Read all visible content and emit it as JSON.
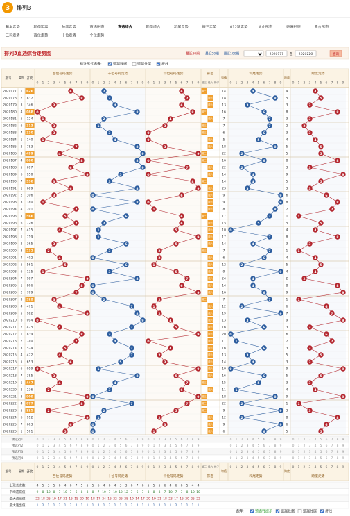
{
  "header": {
    "logo": "3",
    "title": "排列3"
  },
  "nav": [
    [
      "基本走势",
      "和值距离",
      "跨度走势",
      "直选形态",
      "直选综合",
      "和值综合",
      "和尾走势",
      "振三走势",
      "012路走势",
      "大小形态",
      "奇偶形态",
      "质合形态"
    ],
    [
      "二码走势",
      "百位走势",
      "十位走势",
      "个位走势"
    ]
  ],
  "nav_active": "0.4",
  "chart": {
    "title": "排列3直选综合走势图",
    "ranges": [
      "最近30期",
      "最近50期",
      "最近100期"
    ],
    "from": "2020177",
    "to_label": "至",
    "to": "2020226",
    "query": "查询"
  },
  "options": {
    "label": "标注形式选择:",
    "items": [
      {
        "text": "遗漏数据",
        "checked": true
      },
      {
        "text": "遗漏分层",
        "checked": false
      },
      {
        "text": "折线",
        "checked": true
      }
    ]
  },
  "columns": {
    "period": "期号",
    "week": "星期",
    "number": "开奖",
    "sections": [
      "百位号码走势",
      "十位号码走势",
      "个位号码走势",
      "形态",
      "和值",
      "和尾走势",
      "跨度",
      "跨度走势"
    ],
    "digits": [
      0,
      1,
      2,
      3,
      4,
      5,
      6,
      7,
      8,
      9
    ],
    "forms": [
      "组三",
      "组六",
      "豹子"
    ]
  },
  "rows": [
    {
      "p": "2020177",
      "w": "1",
      "n": "626",
      "d": [
        6,
        2,
        6
      ],
      "s": 14,
      "t": 4,
      "k": 4,
      "f": "组三"
    },
    {
      "p": "2020178",
      "w": "2",
      "n": "837",
      "d": [
        8,
        3,
        7
      ],
      "s": 18,
      "t": 8,
      "k": 5,
      "f": "组六"
    },
    {
      "p": "2020179",
      "w": "3",
      "n": "346",
      "d": [
        3,
        4,
        6
      ],
      "s": 13,
      "t": 3,
      "k": 3,
      "f": "组六"
    },
    {
      "p": "2020180",
      "w": "4",
      "n": "088",
      "d": [
        0,
        8,
        8
      ],
      "s": 16,
      "t": 6,
      "k": 8,
      "f": "组三"
    },
    {
      "p": "2020181",
      "w": "5",
      "n": "124",
      "d": [
        1,
        2,
        4
      ],
      "s": 7,
      "t": 7,
      "k": 3,
      "f": "组六"
    },
    {
      "p": "2020182",
      "w": "6",
      "n": "313",
      "d": [
        3,
        1,
        3
      ],
      "s": 7,
      "t": 7,
      "k": 2,
      "f": "组三"
    },
    {
      "p": "2020183",
      "w": "7",
      "n": "330",
      "d": [
        3,
        3,
        0
      ],
      "s": 6,
      "t": 6,
      "k": 3,
      "f": "组三"
    },
    {
      "p": "2020184",
      "w": "1",
      "n": "140",
      "d": [
        1,
        4,
        0
      ],
      "s": 5,
      "t": 5,
      "k": 4,
      "f": "组六"
    },
    {
      "p": "2020185",
      "w": "2",
      "n": "783",
      "d": [
        7,
        8,
        3
      ],
      "s": 18,
      "t": 8,
      "k": 5,
      "f": "组六"
    },
    {
      "p": "2020186",
      "w": "3",
      "n": "499",
      "d": [
        4,
        9,
        9
      ],
      "s": 22,
      "t": 2,
      "k": 5,
      "f": "组三"
    },
    {
      "p": "2020187",
      "w": "4",
      "n": "880",
      "d": [
        8,
        8,
        0
      ],
      "s": 16,
      "t": 6,
      "k": 8,
      "f": "组三"
    },
    {
      "p": "2020188",
      "w": "5",
      "n": "697",
      "d": [
        6,
        9,
        7
      ],
      "s": 22,
      "t": 2,
      "k": 3,
      "f": "组六"
    },
    {
      "p": "2020189",
      "w": "6",
      "n": "950",
      "d": [
        9,
        5,
        0
      ],
      "s": 14,
      "t": 4,
      "k": 9,
      "f": "组六"
    },
    {
      "p": "2020190",
      "w": "7",
      "n": "338",
      "d": [
        3,
        3,
        8
      ],
      "s": 14,
      "t": 4,
      "k": 5,
      "f": "组三"
    },
    {
      "p": "2020191",
      "w": "1",
      "n": "689",
      "d": [
        6,
        8,
        9
      ],
      "s": 23,
      "t": 3,
      "k": 3,
      "f": "组六"
    },
    {
      "p": "2020192",
      "w": "2",
      "n": "306",
      "d": [
        3,
        0,
        6
      ],
      "s": 9,
      "t": 9,
      "k": 6,
      "f": "组六"
    },
    {
      "p": "2020193",
      "w": "3",
      "n": "180",
      "d": [
        1,
        8,
        0
      ],
      "s": 9,
      "t": 9,
      "k": 8,
      "f": "组六"
    },
    {
      "p": "2020194",
      "w": "4",
      "n": "701",
      "d": [
        7,
        0,
        1
      ],
      "s": 8,
      "t": 8,
      "k": 7,
      "f": "组六"
    },
    {
      "p": "2020195",
      "w": "5",
      "n": "566",
      "d": [
        5,
        6,
        6
      ],
      "s": 17,
      "t": 7,
      "k": 1,
      "f": "组三"
    },
    {
      "p": "2020196",
      "w": "6",
      "n": "726",
      "d": [
        7,
        2,
        6
      ],
      "s": 15,
      "t": 5,
      "k": 5,
      "f": "组六"
    },
    {
      "p": "2020197",
      "w": "7",
      "n": "415",
      "d": [
        4,
        1,
        5
      ],
      "s": 10,
      "t": 0,
      "k": 4,
      "f": "组六"
    },
    {
      "p": "2020198",
      "w": "1",
      "n": "719",
      "d": [
        7,
        1,
        9
      ],
      "s": 17,
      "t": 7,
      "k": 8,
      "f": "组六"
    },
    {
      "p": "2020199",
      "w": "2",
      "n": "365",
      "d": [
        3,
        6,
        5
      ],
      "s": 14,
      "t": 4,
      "k": 3,
      "f": "组六"
    },
    {
      "p": "2020200",
      "w": "3",
      "n": "232",
      "d": [
        2,
        3,
        2
      ],
      "s": 7,
      "t": 7,
      "k": 1,
      "f": "组三"
    },
    {
      "p": "2020201",
      "w": "4",
      "n": "402",
      "d": [
        4,
        0,
        2
      ],
      "s": 6,
      "t": 6,
      "k": 4,
      "f": "组六"
    },
    {
      "p": "2020202",
      "w": "5",
      "n": "561",
      "d": [
        5,
        6,
        1
      ],
      "s": 12,
      "t": 2,
      "k": 5,
      "f": "组六"
    },
    {
      "p": "2020203",
      "w": "6",
      "n": "135",
      "d": [
        1,
        3,
        5
      ],
      "s": 9,
      "t": 9,
      "k": 4,
      "f": "组六"
    },
    {
      "p": "2020204",
      "w": "7",
      "n": "987",
      "d": [
        9,
        8,
        7
      ],
      "s": 24,
      "t": 4,
      "k": 2,
      "f": "组六"
    },
    {
      "p": "2020205",
      "w": "1",
      "n": "806",
      "d": [
        8,
        0,
        6
      ],
      "s": 14,
      "t": 4,
      "k": 8,
      "f": "组六"
    },
    {
      "p": "2020206",
      "w": "2",
      "n": "709",
      "d": [
        7,
        0,
        9
      ],
      "s": 16,
      "t": 6,
      "k": 9,
      "f": "组六"
    },
    {
      "p": "2020207",
      "w": "3",
      "n": "322",
      "d": [
        3,
        2,
        2
      ],
      "s": 7,
      "t": 7,
      "k": 1,
      "f": "组三"
    },
    {
      "p": "2020208",
      "w": "4",
      "n": "471",
      "d": [
        4,
        7,
        1
      ],
      "s": 12,
      "t": 2,
      "k": 6,
      "f": "组六"
    },
    {
      "p": "2020209",
      "w": "5",
      "n": "982",
      "d": [
        9,
        8,
        2
      ],
      "s": 19,
      "t": 9,
      "k": 7,
      "f": "组六"
    },
    {
      "p": "2020210",
      "w": "6",
      "n": "094",
      "d": [
        0,
        9,
        4
      ],
      "s": 13,
      "t": 3,
      "k": 9,
      "f": "组六"
    },
    {
      "p": "2020211",
      "w": "7",
      "n": "475",
      "d": [
        4,
        7,
        5
      ],
      "s": 16,
      "t": 6,
      "k": 3,
      "f": "组六"
    },
    {
      "p": "2020212",
      "w": "1",
      "n": "839",
      "d": [
        8,
        3,
        9
      ],
      "s": 20,
      "t": 0,
      "k": 6,
      "f": "组六"
    },
    {
      "p": "2020213",
      "w": "2",
      "n": "740",
      "d": [
        7,
        4,
        0
      ],
      "s": 11,
      "t": 1,
      "k": 7,
      "f": "组六"
    },
    {
      "p": "2020214",
      "w": "3",
      "n": "574",
      "d": [
        5,
        7,
        4
      ],
      "s": 16,
      "t": 6,
      "k": 3,
      "f": "组六"
    },
    {
      "p": "2020215",
      "w": "4",
      "n": "472",
      "d": [
        4,
        7,
        2
      ],
      "s": 13,
      "t": 3,
      "k": 5,
      "f": "组六"
    },
    {
      "p": "2020216",
      "w": "5",
      "n": "653",
      "d": [
        6,
        5,
        3
      ],
      "s": 14,
      "t": 4,
      "k": 3,
      "f": "组六"
    },
    {
      "p": "2020217",
      "w": "6",
      "n": "019",
      "d": [
        0,
        1,
        9
      ],
      "s": 10,
      "t": 0,
      "k": 9,
      "f": "组六"
    },
    {
      "p": "2020218",
      "w": "7",
      "n": "385",
      "d": [
        3,
        8,
        5
      ],
      "s": 16,
      "t": 6,
      "k": 5,
      "f": "组六"
    },
    {
      "p": "2020219",
      "w": "1",
      "n": "447",
      "d": [
        4,
        4,
        7
      ],
      "s": 15,
      "t": 5,
      "k": 3,
      "f": "组三"
    },
    {
      "p": "2020220",
      "w": "2",
      "n": "236",
      "d": [
        2,
        3,
        6
      ],
      "s": 11,
      "t": 1,
      "k": 4,
      "f": "组六"
    },
    {
      "p": "2020221",
      "w": "3",
      "n": "909",
      "d": [
        9,
        0,
        9
      ],
      "s": 18,
      "t": 8,
      "k": 9,
      "f": "组三"
    },
    {
      "p": "2020222",
      "w": "4",
      "n": "877",
      "d": [
        8,
        7,
        7
      ],
      "s": 22,
      "t": 2,
      "k": 1,
      "f": "组三"
    },
    {
      "p": "2020223",
      "w": "5",
      "n": "225",
      "d": [
        2,
        2,
        5
      ],
      "s": 9,
      "t": 9,
      "k": 3,
      "f": "组三"
    },
    {
      "p": "2020224",
      "w": "6",
      "n": "912",
      "d": [
        9,
        1,
        2
      ],
      "s": 12,
      "t": 2,
      "k": 8,
      "f": "组六"
    },
    {
      "p": "2020225",
      "w": "7",
      "n": "603",
      "d": [
        6,
        0,
        3
      ],
      "s": 9,
      "t": 9,
      "k": 6,
      "f": "组六"
    },
    {
      "p": "2020226",
      "w": "1",
      "n": "501",
      "d": [
        5,
        0,
        1
      ],
      "s": 6,
      "t": 6,
      "k": 5,
      "f": "组六"
    }
  ],
  "preselect": [
    "预选行1",
    "预选行2",
    "预选行3",
    "预选行4"
  ],
  "stats": {
    "labels": [
      "出现总次数",
      "平均遗漏值",
      "最大遗漏值",
      "最大连出值"
    ],
    "values": [
      [
        4,
        5,
        3,
        5,
        6,
        4,
        6,
        7,
        5,
        5,
        5,
        6,
        4,
        6,
        4,
        3,
        3,
        6,
        7,
        6,
        5,
        5,
        5,
        6,
        4,
        6,
        6,
        5,
        4,
        4
      ],
      [
        9,
        8,
        12,
        8,
        7,
        10,
        7,
        6,
        8,
        8,
        8,
        7,
        10,
        7,
        10,
        12,
        12,
        7,
        6,
        7,
        8,
        8,
        8,
        7,
        10,
        7,
        7,
        8,
        10,
        10
      ],
      [
        22,
        18,
        25,
        19,
        17,
        21,
        16,
        15,
        20,
        19,
        18,
        17,
        24,
        16,
        22,
        26,
        28,
        19,
        14,
        17,
        20,
        19,
        21,
        18,
        23,
        17,
        16,
        20,
        25,
        22
      ],
      [
        1,
        2,
        1,
        1,
        2,
        1,
        2,
        2,
        1,
        1,
        1,
        2,
        1,
        2,
        1,
        1,
        1,
        2,
        2,
        1,
        1,
        1,
        2,
        1,
        1,
        2,
        1,
        1,
        1,
        1
      ]
    ]
  },
  "footer": {
    "label": "选择:",
    "items": [
      {
        "text": "预选行提示",
        "checked": true
      },
      {
        "text": "遗漏数据",
        "checked": true
      },
      {
        "text": "遗漏分层",
        "checked": false
      },
      {
        "text": "折线",
        "checked": true
      }
    ]
  }
}
